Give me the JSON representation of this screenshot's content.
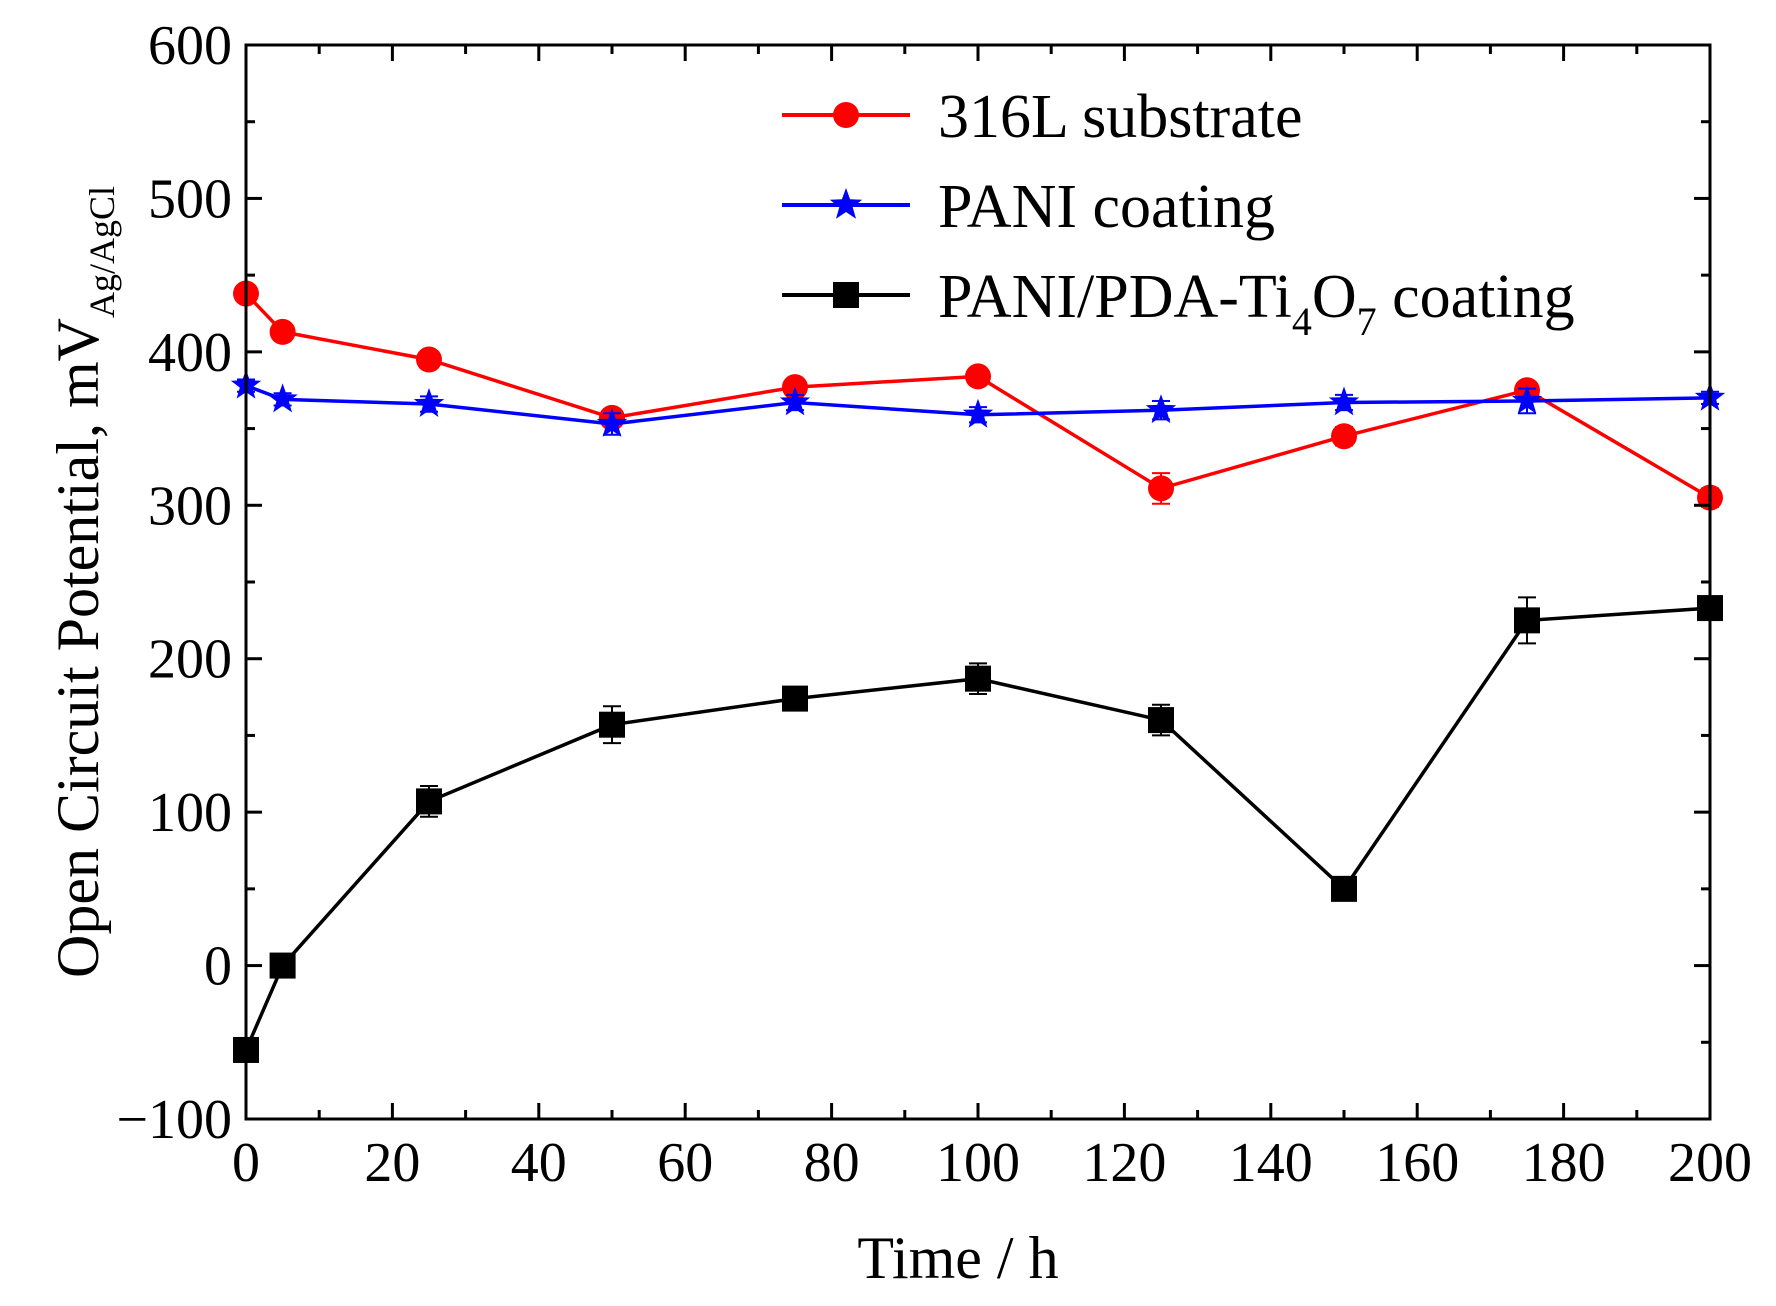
{
  "chart_data": {
    "type": "line",
    "xlabel": "Time / h",
    "ylabel": "Open Circuit Potential, mV",
    "ylabel_subscript": "Ag/AgCl",
    "xlim": [
      0,
      200
    ],
    "ylim": [
      -100,
      600
    ],
    "xticks": [
      0,
      20,
      40,
      60,
      80,
      100,
      120,
      140,
      160,
      180,
      200
    ],
    "yticks": [
      -100,
      0,
      100,
      200,
      300,
      400,
      500,
      600
    ],
    "ytick_labels": [
      "−100",
      "0",
      "100",
      "200",
      "300",
      "400",
      "500",
      "600"
    ],
    "legend_position": "top-right",
    "series": [
      {
        "name": "316L substrate",
        "color": "#ff0000",
        "marker": "circle",
        "x": [
          0,
          5,
          25,
          50,
          75,
          100,
          125,
          150,
          175,
          200
        ],
        "y": [
          438,
          413,
          395,
          357,
          377,
          384,
          311,
          345,
          375,
          305
        ],
        "err": [
          5,
          5,
          5,
          5,
          5,
          5,
          10,
          6,
          5,
          6
        ]
      },
      {
        "name": "PANI coating",
        "color": "#0000ff",
        "marker": "star",
        "x": [
          0,
          5,
          25,
          50,
          75,
          100,
          125,
          150,
          175,
          200
        ],
        "y": [
          378,
          369,
          366,
          353,
          367,
          359,
          362,
          367,
          368,
          370
        ],
        "err": [
          4,
          4,
          5,
          7,
          5,
          5,
          6,
          5,
          8,
          4
        ]
      },
      {
        "name": "PANI/PDA-Ti",
        "name_sub1": "4",
        "name_mid": "O",
        "name_sub2": "7",
        "name_tail": " coating",
        "color": "#000000",
        "marker": "square",
        "x": [
          0,
          5,
          25,
          50,
          75,
          100,
          125,
          150,
          175,
          200
        ],
        "y": [
          -55,
          0,
          107,
          157,
          174,
          187,
          160,
          50,
          225,
          233
        ],
        "err": [
          6,
          4,
          10,
          12,
          5,
          10,
          10,
          6,
          15,
          5
        ]
      }
    ]
  }
}
